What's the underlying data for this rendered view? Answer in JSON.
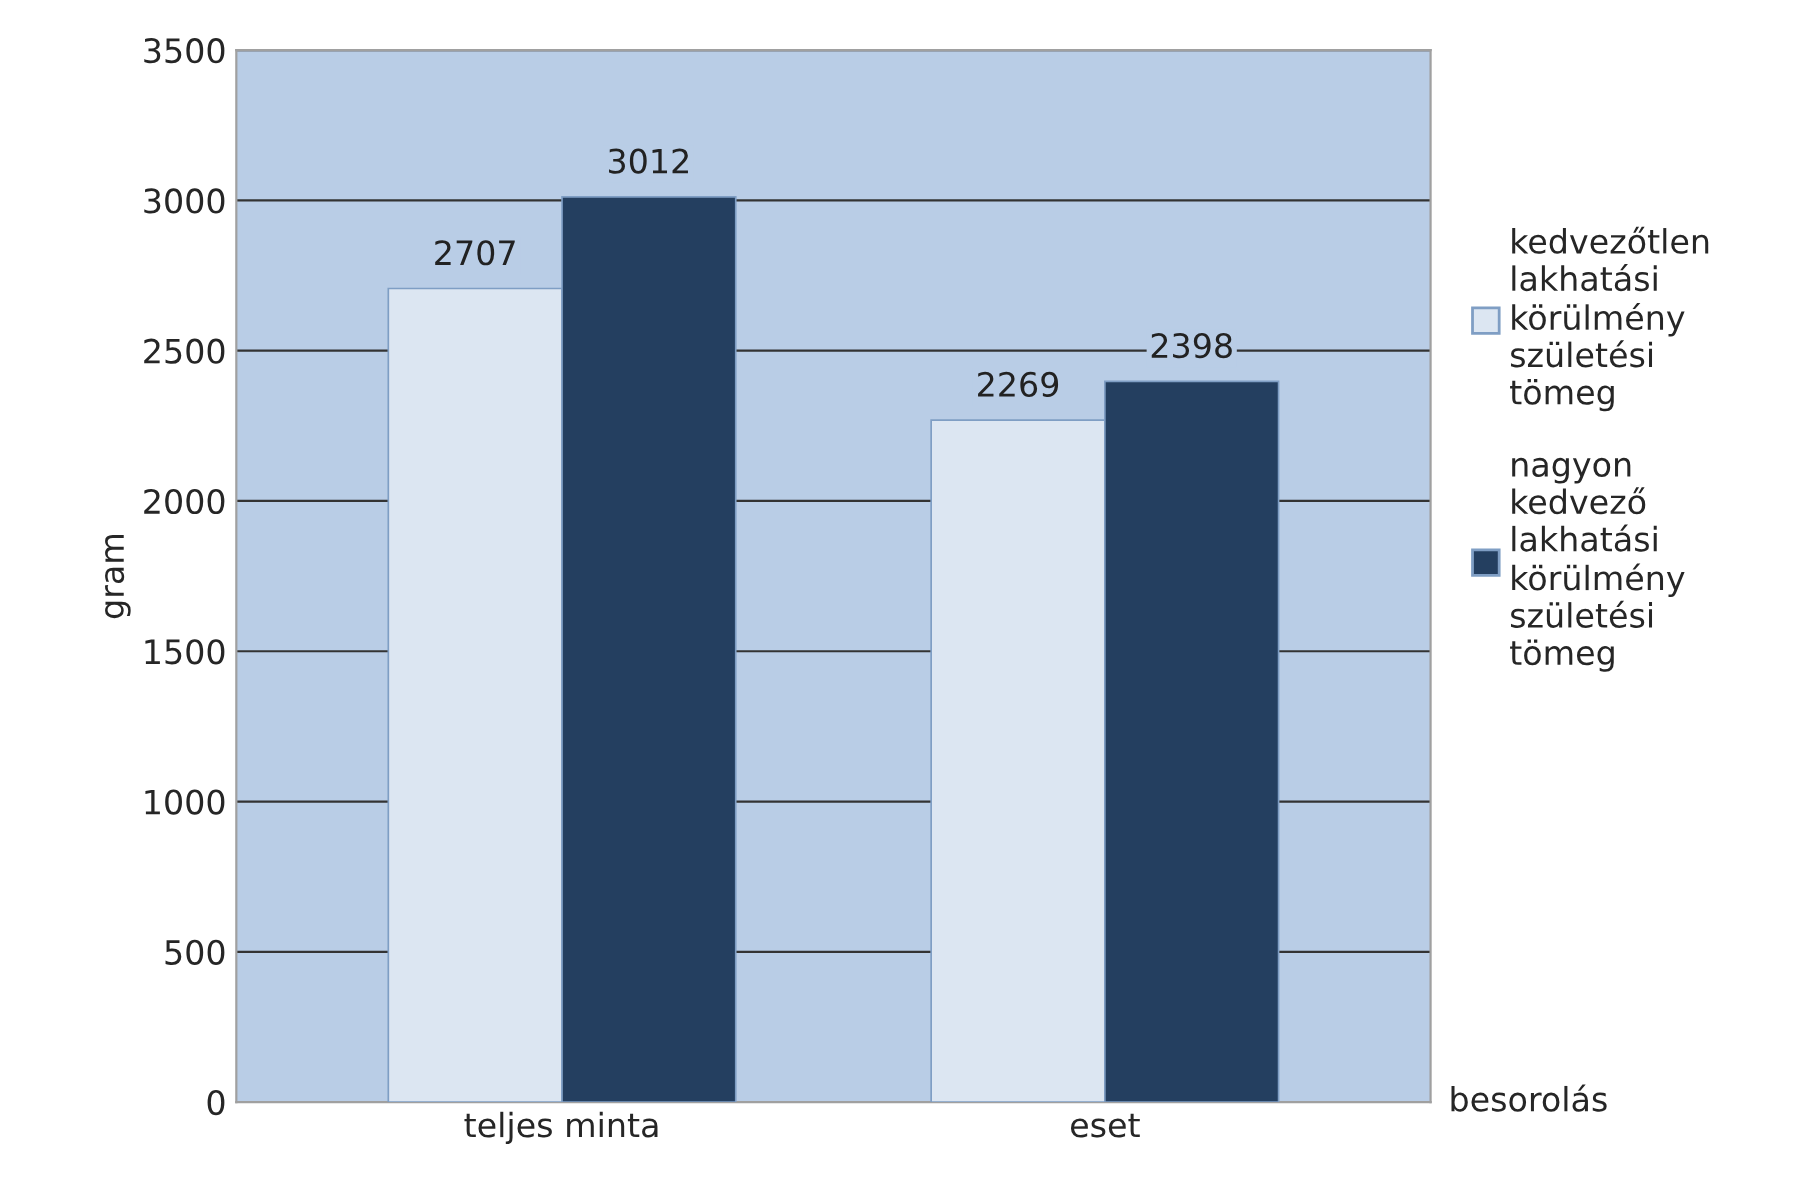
{
  "chart_data": {
    "type": "bar",
    "categories": [
      "teljes minta",
      "eset"
    ],
    "series": [
      {
        "name": "kedvezőtlen lakhatási körülmény születési tömeg",
        "color": "#dce6f2",
        "values": [
          2707,
          2269
        ]
      },
      {
        "name": "nagyon kedvező lakhatási körülmény születési tömeg",
        "color": "#243f60",
        "values": [
          3012,
          2398
        ]
      }
    ],
    "ylabel": "gram",
    "xlabel": "besorolás",
    "ylim": [
      0,
      3500
    ],
    "yticks": [
      0,
      500,
      1000,
      1500,
      2000,
      2500,
      3000,
      3500
    ],
    "grid": "y",
    "legend": "right",
    "data_labels": true
  }
}
